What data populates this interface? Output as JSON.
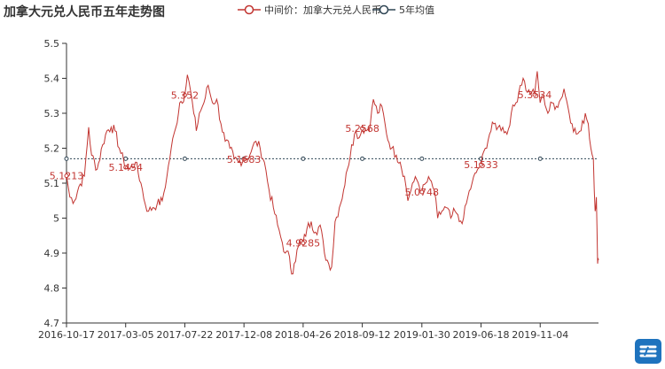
{
  "title": "加拿大元兑人民币五年走势图",
  "legend": {
    "series1": "中间价：加拿大元兑人民币",
    "series2": "5年均值"
  },
  "colors": {
    "series1": "#c23531",
    "series2": "#2f4554",
    "axis": "#333333",
    "text": "#333333",
    "logo": "#1e73be"
  },
  "chart_data": {
    "type": "line",
    "title": "加拿大元兑人民币五年走势图",
    "y_ticks": [
      "5.5",
      "5.4",
      "5.3",
      "5.2",
      "5.1",
      "5",
      "4.9",
      "4.8",
      "4.7"
    ],
    "ylim": [
      4.7,
      5.5
    ],
    "x_tick_labels": [
      "2016-10-17",
      "2017-03-05",
      "2017-07-22",
      "2017-12-08",
      "2018-04-26",
      "2018-09-12",
      "2019-01-30",
      "2019-06-18",
      "2019-11-04"
    ],
    "xlim": [
      "2016-10-17",
      "2020-03-20"
    ],
    "series": [
      {
        "name": "中间价：加拿大元兑人民币",
        "color": "#c23531",
        "points": [
          [
            "2016-10-17",
            5.1213
          ],
          [
            "2016-10-25",
            5.06
          ],
          [
            "2016-11-05",
            5.05
          ],
          [
            "2016-11-15",
            5.09
          ],
          [
            "2016-11-28",
            5.12
          ],
          [
            "2016-12-08",
            5.26
          ],
          [
            "2016-12-15",
            5.18
          ],
          [
            "2016-12-28",
            5.14
          ],
          [
            "2017-01-10",
            5.21
          ],
          [
            "2017-01-20",
            5.25
          ],
          [
            "2017-01-30",
            5.26
          ],
          [
            "2017-02-08",
            5.25
          ],
          [
            "2017-02-18",
            5.2
          ],
          [
            "2017-03-01",
            5.16
          ],
          [
            "2017-03-05",
            5.1454
          ],
          [
            "2017-03-15",
            5.14
          ],
          [
            "2017-03-28",
            5.16
          ],
          [
            "2017-04-10",
            5.1
          ],
          [
            "2017-04-20",
            5.04
          ],
          [
            "2017-04-28",
            5.02
          ],
          [
            "2017-05-08",
            5.03
          ],
          [
            "2017-05-18",
            5.04
          ],
          [
            "2017-05-30",
            5.05
          ],
          [
            "2017-06-10",
            5.12
          ],
          [
            "2017-06-20",
            5.2
          ],
          [
            "2017-07-01",
            5.26
          ],
          [
            "2017-07-10",
            5.33
          ],
          [
            "2017-07-22",
            5.352
          ],
          [
            "2017-07-28",
            5.41
          ],
          [
            "2017-08-05",
            5.36
          ],
          [
            "2017-08-12",
            5.3
          ],
          [
            "2017-08-18",
            5.25
          ],
          [
            "2017-08-25",
            5.3
          ],
          [
            "2017-09-05",
            5.33
          ],
          [
            "2017-09-15",
            5.38
          ],
          [
            "2017-09-25",
            5.33
          ],
          [
            "2017-10-05",
            5.34
          ],
          [
            "2017-10-15",
            5.27
          ],
          [
            "2017-10-25",
            5.22
          ],
          [
            "2017-11-05",
            5.2
          ],
          [
            "2017-11-15",
            5.17
          ],
          [
            "2017-11-25",
            5.16
          ],
          [
            "2017-12-08",
            5.1683
          ],
          [
            "2017-12-15",
            5.17
          ],
          [
            "2017-12-25",
            5.19
          ],
          [
            "2018-01-05",
            5.22
          ],
          [
            "2018-01-15",
            5.2
          ],
          [
            "2018-01-25",
            5.16
          ],
          [
            "2018-02-05",
            5.08
          ],
          [
            "2018-02-15",
            5.03
          ],
          [
            "2018-02-25",
            4.98
          ],
          [
            "2018-03-08",
            4.93
          ],
          [
            "2018-03-15",
            4.9
          ],
          [
            "2018-03-25",
            4.89
          ],
          [
            "2018-03-30",
            4.84
          ],
          [
            "2018-04-05",
            4.87
          ],
          [
            "2018-04-15",
            4.92
          ],
          [
            "2018-04-20",
            4.94
          ],
          [
            "2018-04-26",
            4.9285
          ],
          [
            "2018-05-05",
            4.97
          ],
          [
            "2018-05-15",
            4.99
          ],
          [
            "2018-05-25",
            4.96
          ],
          [
            "2018-06-05",
            4.98
          ],
          [
            "2018-06-15",
            4.9
          ],
          [
            "2018-06-25",
            4.87
          ],
          [
            "2018-07-02",
            4.86
          ],
          [
            "2018-07-10",
            4.99
          ],
          [
            "2018-07-20",
            5.03
          ],
          [
            "2018-07-30",
            5.08
          ],
          [
            "2018-08-08",
            5.14
          ],
          [
            "2018-08-18",
            5.21
          ],
          [
            "2018-08-28",
            5.25
          ],
          [
            "2018-09-05",
            5.23
          ],
          [
            "2018-09-12",
            5.2568
          ],
          [
            "2018-09-22",
            5.25
          ],
          [
            "2018-10-01",
            5.27
          ],
          [
            "2018-10-08",
            5.34
          ],
          [
            "2018-10-18",
            5.3
          ],
          [
            "2018-10-28",
            5.32
          ],
          [
            "2018-11-08",
            5.24
          ],
          [
            "2018-11-20",
            5.2
          ],
          [
            "2018-12-01",
            5.18
          ],
          [
            "2018-12-10",
            5.16
          ],
          [
            "2018-12-20",
            5.12
          ],
          [
            "2018-12-28",
            5.05
          ],
          [
            "2019-01-08",
            5.1
          ],
          [
            "2019-01-18",
            5.11
          ],
          [
            "2019-01-30",
            5.0748
          ],
          [
            "2019-02-08",
            5.1
          ],
          [
            "2019-02-18",
            5.11
          ],
          [
            "2019-02-28",
            5.08
          ],
          [
            "2019-03-08",
            5.0
          ],
          [
            "2019-03-18",
            5.02
          ],
          [
            "2019-03-28",
            5.03
          ],
          [
            "2019-04-08",
            5.0
          ],
          [
            "2019-04-18",
            5.02
          ],
          [
            "2019-04-28",
            4.99
          ],
          [
            "2019-05-08",
            5.0
          ],
          [
            "2019-05-18",
            5.06
          ],
          [
            "2019-05-28",
            5.1
          ],
          [
            "2019-06-10",
            5.14
          ],
          [
            "2019-06-18",
            5.1533
          ],
          [
            "2019-06-28",
            5.2
          ],
          [
            "2019-07-08",
            5.24
          ],
          [
            "2019-07-18",
            5.27
          ],
          [
            "2019-07-28",
            5.26
          ],
          [
            "2019-08-08",
            5.26
          ],
          [
            "2019-08-18",
            5.24
          ],
          [
            "2019-08-28",
            5.3
          ],
          [
            "2019-09-08",
            5.33
          ],
          [
            "2019-09-18",
            5.38
          ],
          [
            "2019-09-25",
            5.4
          ],
          [
            "2019-10-05",
            5.36
          ],
          [
            "2019-10-15",
            5.36
          ],
          [
            "2019-10-22",
            5.3534
          ],
          [
            "2019-10-28",
            5.42
          ],
          [
            "2019-11-04",
            5.33
          ],
          [
            "2019-11-12",
            5.35
          ],
          [
            "2019-11-22",
            5.3
          ],
          [
            "2019-12-02",
            5.33
          ],
          [
            "2019-12-12",
            5.32
          ],
          [
            "2019-12-22",
            5.34
          ],
          [
            "2019-12-30",
            5.37
          ],
          [
            "2020-01-08",
            5.32
          ],
          [
            "2020-01-18",
            5.27
          ],
          [
            "2020-01-28",
            5.24
          ],
          [
            "2020-02-08",
            5.25
          ],
          [
            "2020-02-18",
            5.3
          ],
          [
            "2020-02-25",
            5.27
          ],
          [
            "2020-03-02",
            5.2
          ],
          [
            "2020-03-08",
            5.17
          ],
          [
            "2020-03-12",
            5.02
          ],
          [
            "2020-03-15",
            5.06
          ],
          [
            "2020-03-18",
            4.87
          ],
          [
            "2020-03-20",
            4.88
          ]
        ],
        "labels": [
          {
            "date": "2016-10-17",
            "value": 5.1213,
            "text": "5.1213"
          },
          {
            "date": "2017-03-05",
            "value": 5.1454,
            "text": "5.1454"
          },
          {
            "date": "2017-07-22",
            "value": 5.352,
            "text": "5.352"
          },
          {
            "date": "2017-12-08",
            "value": 5.1683,
            "text": "5.1683"
          },
          {
            "date": "2018-04-26",
            "value": 4.9285,
            "text": "4.9285"
          },
          {
            "date": "2018-09-12",
            "value": 5.2568,
            "text": "5.2568"
          },
          {
            "date": "2019-01-30",
            "value": 5.0748,
            "text": "5.0748"
          },
          {
            "date": "2019-06-18",
            "value": 5.1533,
            "text": "5.1533"
          },
          {
            "date": "2019-10-22",
            "value": 5.3534,
            "text": "5.3534"
          }
        ]
      },
      {
        "name": "5年均值",
        "color": "#2f4554",
        "value": 5.17,
        "marker_dates": [
          "2016-10-17",
          "2017-03-05",
          "2017-07-22",
          "2017-12-08",
          "2018-04-26",
          "2018-09-12",
          "2019-01-30",
          "2019-06-18",
          "2019-11-04"
        ]
      }
    ]
  }
}
